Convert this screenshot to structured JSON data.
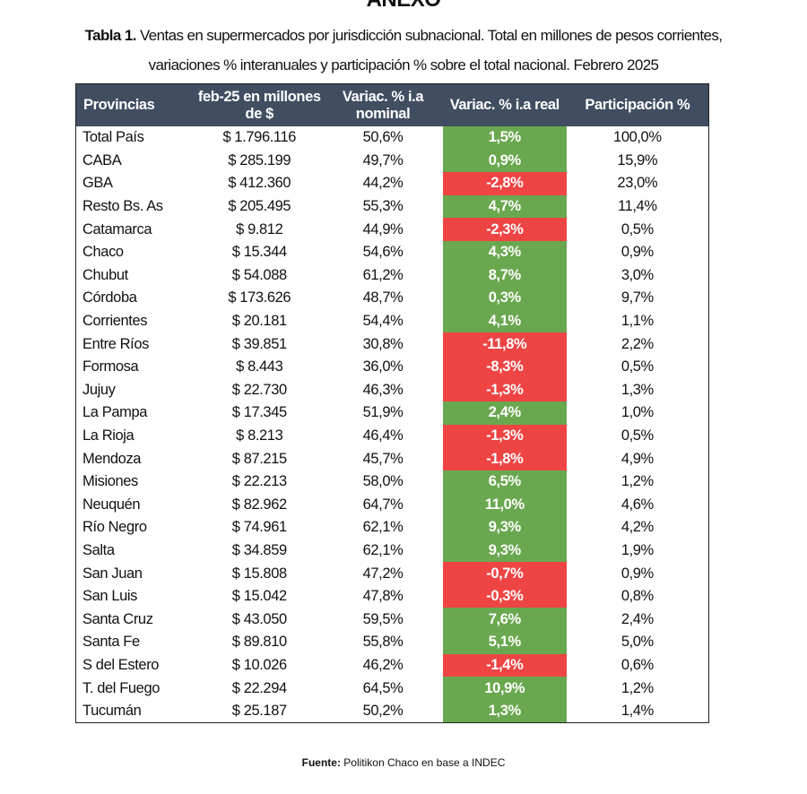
{
  "heading_partial": "ANEXO",
  "title": {
    "label": "Tabla 1.",
    "line1": " Ventas en supermercados por jurisdicción subnacional. Total en millones de pesos corrientes,",
    "line2": "variaciones % interanuales y participación % sobre el total nacional. Febrero 2025"
  },
  "colors": {
    "header_bg": "#414d60",
    "positive": "#6aa84f",
    "negative": "#ee4444"
  },
  "table": {
    "headers": [
      "Provincias",
      "feb-25 en millones de $",
      "Variac. % i.a nominal",
      "Variac. % i.a real",
      "Participación %"
    ],
    "rows": [
      [
        "Total País",
        "$ 1.796.116",
        "50,6%",
        "1,5%",
        "100,0%"
      ],
      [
        "CABA",
        "$ 285.199",
        "49,7%",
        "0,9%",
        "15,9%"
      ],
      [
        "GBA",
        "$ 412.360",
        "44,2%",
        "-2,8%",
        "23,0%"
      ],
      [
        "Resto Bs. As",
        "$ 205.495",
        "55,3%",
        "4,7%",
        "11,4%"
      ],
      [
        "Catamarca",
        "$ 9.812",
        "44,9%",
        "-2,3%",
        "0,5%"
      ],
      [
        "Chaco",
        "$ 15.344",
        "54,6%",
        "4,3%",
        "0,9%"
      ],
      [
        "Chubut",
        "$ 54.088",
        "61,2%",
        "8,7%",
        "3,0%"
      ],
      [
        "Córdoba",
        "$ 173.626",
        "48,7%",
        "0,3%",
        "9,7%"
      ],
      [
        "Corrientes",
        "$ 20.181",
        "54,4%",
        "4,1%",
        "1,1%"
      ],
      [
        "Entre Ríos",
        "$ 39.851",
        "30,8%",
        "-11,8%",
        "2,2%"
      ],
      [
        "Formosa",
        "$ 8.443",
        "36,0%",
        "-8,3%",
        "0,5%"
      ],
      [
        "Jujuy",
        "$ 22.730",
        "46,3%",
        "-1,3%",
        "1,3%"
      ],
      [
        "La Pampa",
        "$ 17.345",
        "51,9%",
        "2,4%",
        "1,0%"
      ],
      [
        "La Rioja",
        "$ 8.213",
        "46,4%",
        "-1,3%",
        "0,5%"
      ],
      [
        "Mendoza",
        "$ 87.215",
        "45,7%",
        "-1,8%",
        "4,9%"
      ],
      [
        "Misiones",
        "$ 22.213",
        "58,0%",
        "6,5%",
        "1,2%"
      ],
      [
        "Neuquén",
        "$ 82.962",
        "64,7%",
        "11,0%",
        "4,6%"
      ],
      [
        "Río Negro",
        "$ 74.961",
        "62,1%",
        "9,3%",
        "4,2%"
      ],
      [
        "Salta",
        "$ 34.859",
        "62,1%",
        "9,3%",
        "1,9%"
      ],
      [
        "San Juan",
        "$ 15.808",
        "47,2%",
        "-0,7%",
        "0,9%"
      ],
      [
        "San Luis",
        "$ 15.042",
        "47,8%",
        "-0,3%",
        "0,8%"
      ],
      [
        "Santa Cruz",
        "$ 43.050",
        "59,5%",
        "7,6%",
        "2,4%"
      ],
      [
        "Santa Fe",
        "$ 89.810",
        "55,8%",
        "5,1%",
        "5,0%"
      ],
      [
        "S del Estero",
        "$ 10.026",
        "46,2%",
        "-1,4%",
        "0,6%"
      ],
      [
        "T. del Fuego",
        "$ 22.294",
        "64,5%",
        "10,9%",
        "1,2%"
      ],
      [
        "Tucumán",
        "$ 25.187",
        "50,2%",
        "1,3%",
        "1,4%"
      ]
    ]
  },
  "footer": {
    "label": "Fuente:",
    "text": " Politikon Chaco en base a INDEC"
  }
}
